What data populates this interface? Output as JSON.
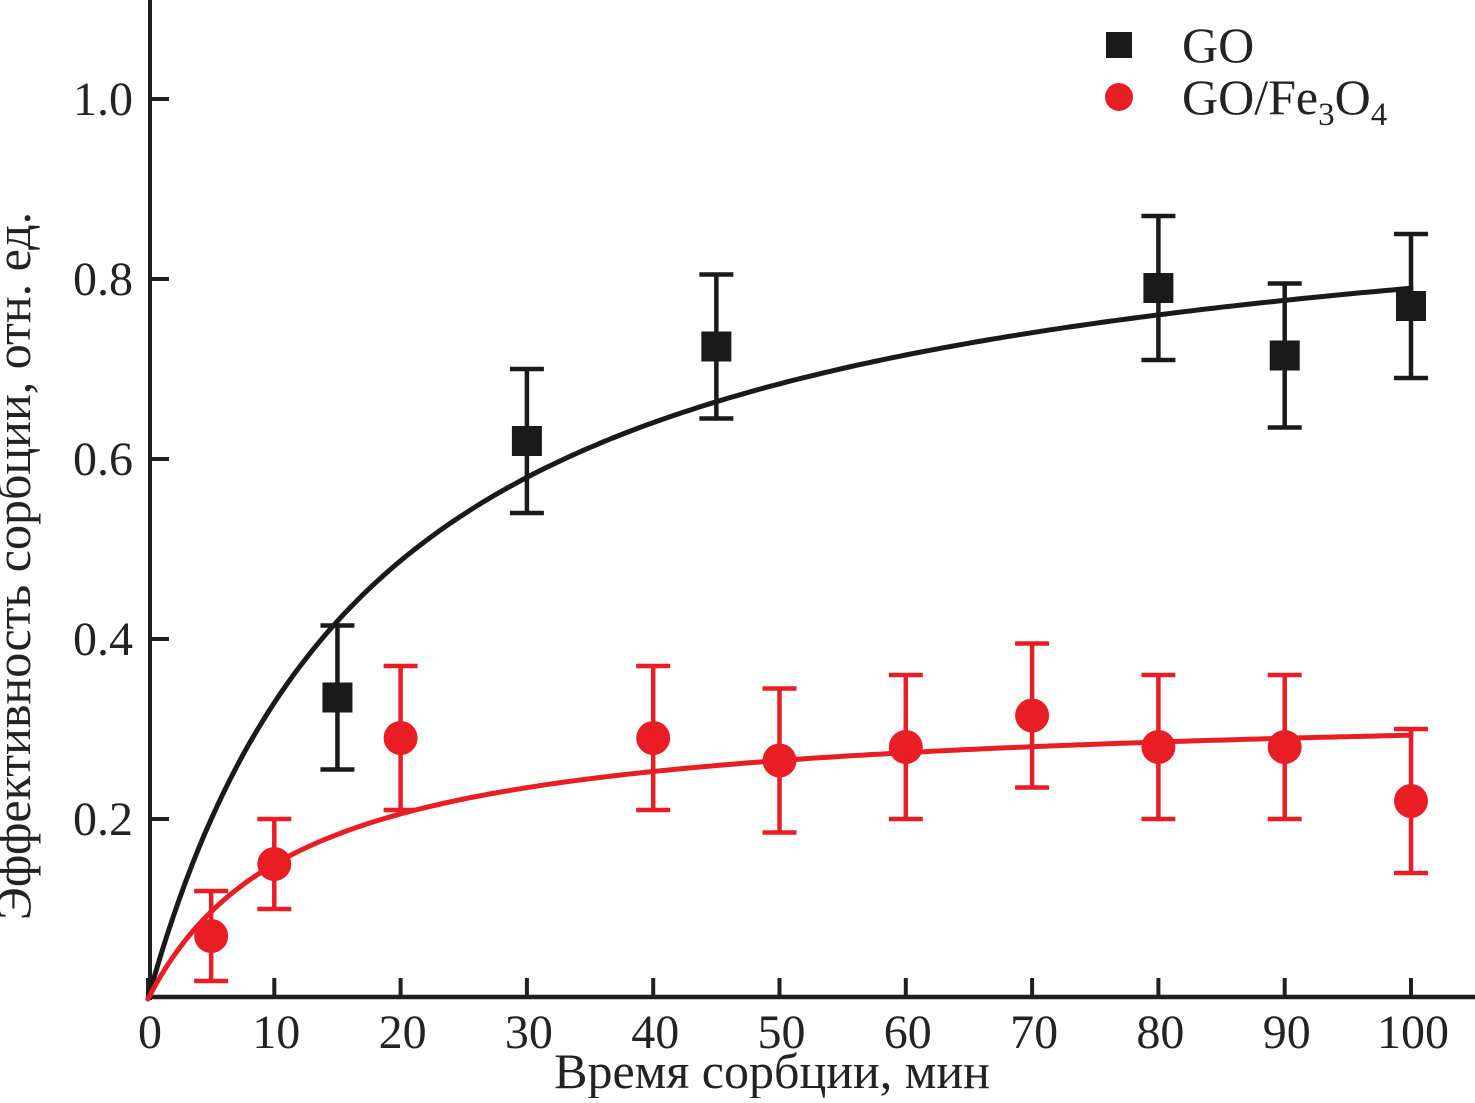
{
  "chart_data": {
    "type": "scatter",
    "title": "",
    "xlabel": "Время сорбции, мин",
    "ylabel": "Эффективность сорбции, отн. ед.",
    "xlim": [
      0,
      105
    ],
    "ylim": [
      0,
      1.11
    ],
    "x_ticks": [
      "0",
      "10",
      "20",
      "30",
      "40",
      "50",
      "60",
      "70",
      "80",
      "90",
      "100"
    ],
    "x_tick_values": [
      0,
      10,
      20,
      30,
      40,
      50,
      60,
      70,
      80,
      90,
      100
    ],
    "y_ticks": [
      "0.2",
      "0.4",
      "0.6",
      "0.8",
      "1.0"
    ],
    "y_tick_values": [
      0.2,
      0.4,
      0.6,
      0.8,
      1.0
    ],
    "grid": false,
    "legend_position": "top-right-inside",
    "colors": {
      "go": "#1a1a1a",
      "go_fe3o4": "#e81e24",
      "text": "#232323",
      "axis": "#1f1f1f"
    },
    "series": [
      {
        "key": "go",
        "name": "GO",
        "marker": "square",
        "color": "#1a1a1a",
        "points": [
          {
            "x": 15,
            "y": 0.335,
            "err": 0.08
          },
          {
            "x": 30,
            "y": 0.62,
            "err": 0.08
          },
          {
            "x": 45,
            "y": 0.725,
            "err": 0.08
          },
          {
            "x": 80,
            "y": 0.79,
            "err": 0.08
          },
          {
            "x": 90,
            "y": 0.715,
            "err": 0.08
          },
          {
            "x": 100,
            "y": 0.77,
            "err": 0.08
          }
        ],
        "fit_curve": {
          "type": "langmuir",
          "formula": "y = a*x/(b+x)",
          "a": 0.935,
          "b": 18.4,
          "x_max": 100.3
        }
      },
      {
        "key": "go-fe3o4",
        "name": "GO/Fe₃O₄",
        "marker": "circle",
        "color": "#e81e24",
        "points": [
          {
            "x": 5,
            "y": 0.07,
            "err": 0.05
          },
          {
            "x": 10,
            "y": 0.15,
            "err": 0.05
          },
          {
            "x": 20,
            "y": 0.29,
            "err": 0.08
          },
          {
            "x": 40,
            "y": 0.29,
            "err": 0.08
          },
          {
            "x": 50,
            "y": 0.265,
            "err": 0.08
          },
          {
            "x": 60,
            "y": 0.28,
            "err": 0.08
          },
          {
            "x": 70,
            "y": 0.315,
            "err": 0.08
          },
          {
            "x": 80,
            "y": 0.28,
            "err": 0.08
          },
          {
            "x": 90,
            "y": 0.28,
            "err": 0.08
          },
          {
            "x": 100,
            "y": 0.22,
            "err": 0.08
          }
        ],
        "fit_curve": {
          "type": "langmuir",
          "formula": "y = a*x/(b+x)",
          "a": 0.328,
          "b": 11.9,
          "x_max": 100.4
        }
      }
    ],
    "legend": {
      "items": [
        {
          "key": "go",
          "label": "GO",
          "label_parts": [
            {
              "t": "GO"
            }
          ],
          "marker": "square",
          "color": "#1a1a1a"
        },
        {
          "key": "go-fe3o4",
          "label": "GO/Fe₃O₄",
          "label_parts": [
            {
              "t": "GO/Fe"
            },
            {
              "t": "3",
              "sub": true
            },
            {
              "t": "O"
            },
            {
              "t": "4",
              "sub": true
            }
          ],
          "marker": "circle",
          "color": "#e81e24"
        }
      ]
    }
  }
}
